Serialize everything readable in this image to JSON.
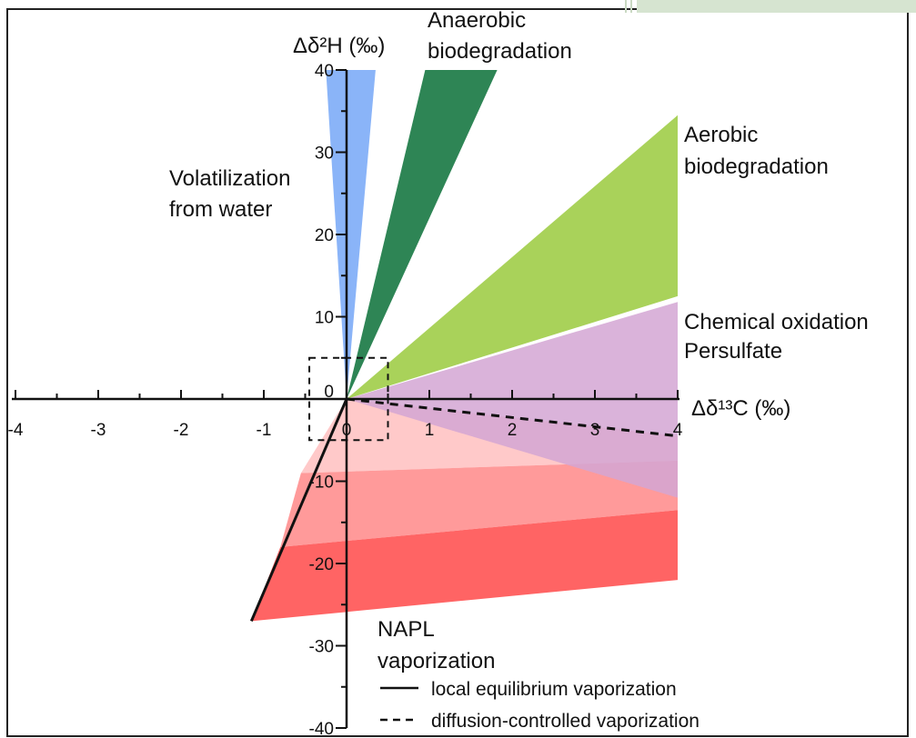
{
  "chart_data": {
    "type": "area",
    "title": "",
    "xlabel": "Δδ¹³C (‰)",
    "ylabel": "Δδ²H (‰)",
    "xlim": [
      -4,
      4
    ],
    "ylim": [
      -40,
      40
    ],
    "x_ticks": [
      -4,
      -3,
      -2,
      -1,
      0,
      1,
      2,
      3,
      4
    ],
    "x_tick_labels": [
      "-4",
      "-3",
      "-2",
      "-1",
      "0",
      "1",
      "2",
      "3",
      "4"
    ],
    "y_ticks": [
      -40,
      -30,
      -20,
      -10,
      0,
      10,
      20,
      30,
      40
    ],
    "y_tick_labels": [
      "-40",
      "-30",
      "-20",
      "-10",
      "0",
      "10",
      "20",
      "30",
      "40"
    ],
    "colors": {
      "volatilization": "#8ab4f8",
      "anaerobic": "#2e8555",
      "aerobic": "#a9d25a",
      "chemical": "#d4a6d3",
      "napl_light": "#ffc9c9",
      "napl_mid": "#ff9a9a",
      "napl_dark": "#ff6464",
      "frame_accent": "#d6e4d0"
    },
    "regions": [
      {
        "key": "volatilization",
        "labels": [
          "Volatilization",
          "from water"
        ],
        "polygon": [
          [
            0,
            0
          ],
          [
            -0.25,
            40
          ],
          [
            0.35,
            40
          ]
        ]
      },
      {
        "key": "anaerobic",
        "labels": [
          "Anaerobic",
          "biodegradation"
        ],
        "polygon": [
          [
            0,
            0
          ],
          [
            0.95,
            40
          ],
          [
            1.82,
            40
          ]
        ]
      },
      {
        "key": "aerobic",
        "labels": [
          "Aerobic",
          "biodegradation"
        ],
        "polygon": [
          [
            0,
            0
          ],
          [
            4,
            34.5
          ],
          [
            4,
            12.5
          ]
        ]
      },
      {
        "key": "chemical",
        "labels": [
          "Chemical oxidation",
          "Persulfate"
        ],
        "polygon": [
          [
            0,
            0
          ],
          [
            4,
            11.8
          ],
          [
            4,
            -12
          ]
        ]
      },
      {
        "key": "napl",
        "labels": [
          "NAPL",
          "vaporization"
        ],
        "bands": [
          {
            "key": "napl_light",
            "polygon": [
              [
                0,
                0
              ],
              [
                4,
                -4.5
              ],
              [
                4,
                -7.5
              ],
              [
                -0.55,
                -9
              ]
            ]
          },
          {
            "key": "napl_mid",
            "polygon": [
              [
                -0.55,
                -9
              ],
              [
                4,
                -7.5
              ],
              [
                4,
                -13.5
              ],
              [
                -0.8,
                -18
              ]
            ]
          },
          {
            "key": "napl_dark",
            "polygon": [
              [
                -0.8,
                -18
              ],
              [
                4,
                -13.5
              ],
              [
                4,
                -22
              ],
              [
                -1.15,
                -27
              ]
            ]
          }
        ]
      }
    ],
    "lines": [
      {
        "name": "local equilibrium vaporization",
        "style": "solid",
        "points": [
          [
            0,
            0
          ],
          [
            -1.15,
            -27
          ]
        ]
      },
      {
        "name": "diffusion-controlled vaporization",
        "style": "dashed",
        "points": [
          [
            0,
            0
          ],
          [
            4,
            -4.5
          ]
        ]
      }
    ],
    "inset_box": {
      "x": [
        -0.45,
        0.5
      ],
      "y": [
        -5,
        5
      ]
    },
    "legend": {
      "placement": "bottom-right",
      "items": [
        {
          "label": "local equilibrium vaporization",
          "style": "solid"
        },
        {
          "label": "diffusion-controlled vaporization",
          "style": "dashed"
        }
      ]
    },
    "grid": false
  }
}
